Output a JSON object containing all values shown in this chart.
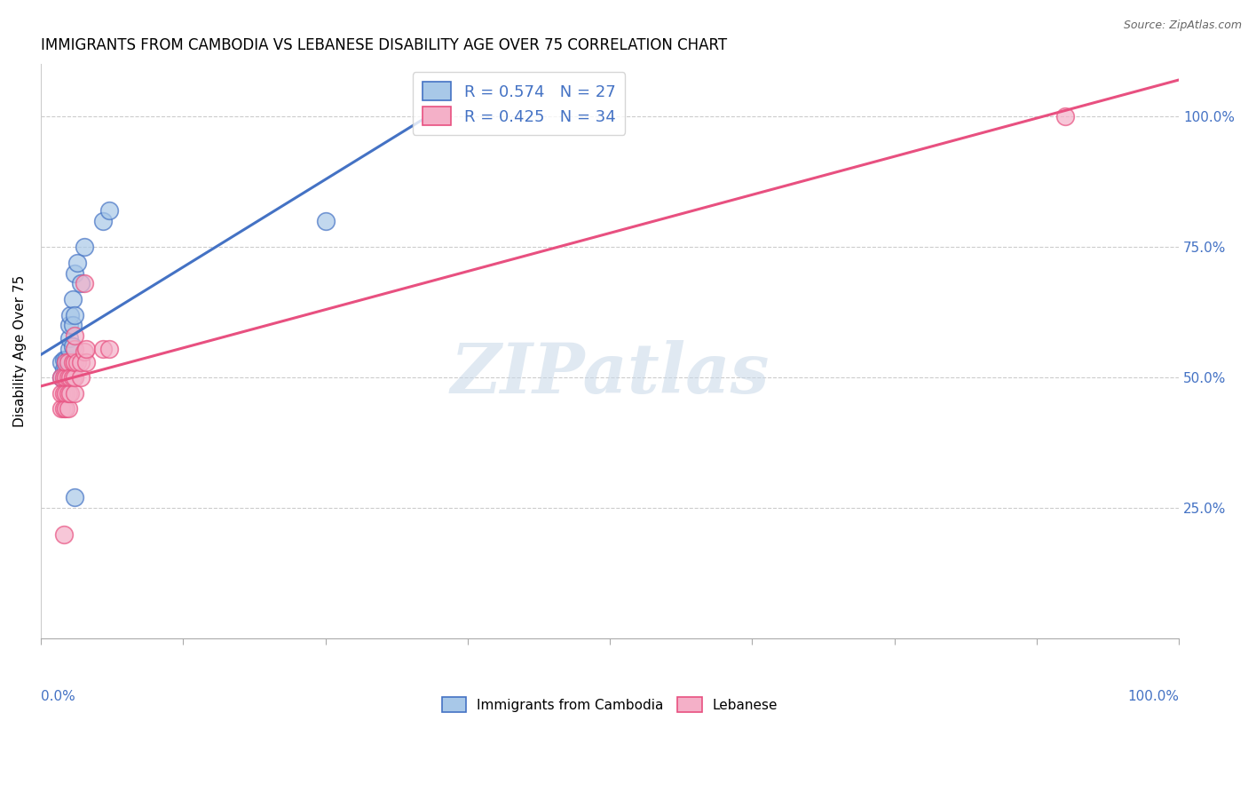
{
  "title": "IMMIGRANTS FROM CAMBODIA VS LEBANESE DISABILITY AGE OVER 75 CORRELATION CHART",
  "source": "Source: ZipAtlas.com",
  "ylabel": "Disability Age Over 75",
  "cambodia_color": "#a8c8e8",
  "lebanese_color": "#f4b0c8",
  "cambodia_line_color": "#4472c4",
  "lebanese_line_color": "#e85080",
  "watermark_text": "ZIPatlas",
  "cambodia_x": [
    0.018,
    0.018,
    0.02,
    0.02,
    0.02,
    0.022,
    0.022,
    0.022,
    0.024,
    0.024,
    0.024,
    0.025,
    0.025,
    0.025,
    0.026,
    0.028,
    0.028,
    0.028,
    0.03,
    0.03,
    0.032,
    0.035,
    0.038,
    0.055,
    0.06,
    0.25,
    0.03
  ],
  "cambodia_y": [
    0.5,
    0.53,
    0.495,
    0.515,
    0.535,
    0.5,
    0.515,
    0.535,
    0.5,
    0.515,
    0.535,
    0.555,
    0.575,
    0.6,
    0.62,
    0.56,
    0.6,
    0.65,
    0.62,
    0.7,
    0.72,
    0.68,
    0.75,
    0.8,
    0.82,
    0.8,
    0.27
  ],
  "lebanese_x": [
    0.018,
    0.018,
    0.018,
    0.02,
    0.02,
    0.02,
    0.022,
    0.022,
    0.022,
    0.022,
    0.024,
    0.024,
    0.024,
    0.024,
    0.026,
    0.026,
    0.028,
    0.028,
    0.03,
    0.03,
    0.03,
    0.03,
    0.03,
    0.032,
    0.035,
    0.035,
    0.038,
    0.04,
    0.04,
    0.055,
    0.06,
    0.02,
    0.038,
    0.9
  ],
  "lebanese_y": [
    0.44,
    0.47,
    0.5,
    0.44,
    0.47,
    0.5,
    0.44,
    0.47,
    0.5,
    0.53,
    0.44,
    0.47,
    0.5,
    0.53,
    0.47,
    0.5,
    0.5,
    0.53,
    0.47,
    0.5,
    0.53,
    0.555,
    0.58,
    0.53,
    0.5,
    0.53,
    0.55,
    0.53,
    0.555,
    0.555,
    0.555,
    0.2,
    0.68,
    1.0
  ],
  "xlim": [
    0.0,
    1.0
  ],
  "ylim": [
    0.0,
    1.1
  ],
  "y_ticks": [
    0.25,
    0.5,
    0.75,
    1.0
  ],
  "y_tick_labels": [
    "25.0%",
    "50.0%",
    "75.0%",
    "100.0%"
  ],
  "x_ticks": [
    0.0,
    0.125,
    0.25,
    0.375,
    0.5,
    0.625,
    0.75,
    0.875,
    1.0
  ],
  "background_color": "#ffffff",
  "legend1_label": "R = 0.574   N = 27",
  "legend2_label": "R = 0.425   N = 34",
  "bottom_legend1": "Immigrants from Cambodia",
  "bottom_legend2": "Lebanese"
}
